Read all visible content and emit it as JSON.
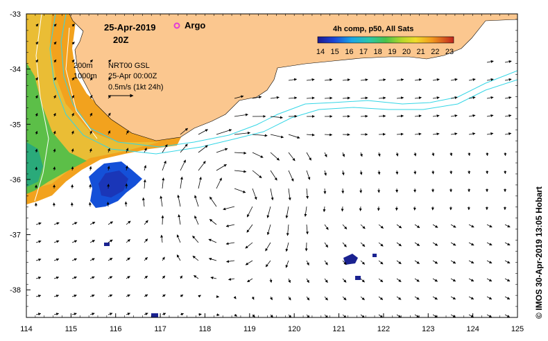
{
  "map": {
    "date": "25-Apr-2019",
    "hour": "20Z",
    "argo_label": "Argo",
    "colorbar_title": "4h comp, p50, All Sats",
    "colorbar_ticks": [
      "14",
      "15",
      "16",
      "17",
      "18",
      "19",
      "20",
      "21",
      "22",
      "23"
    ],
    "contour_labels": [
      "200m",
      "1000m"
    ],
    "info_lines": [
      "NRT00 GSL",
      "25-Apr 00:00Z",
      "0.5m/s (1kt 24h)"
    ],
    "credit": "© IMOS 30-Apr-2019 13:05 Hobart",
    "x_ticks": [
      "114",
      "115",
      "116",
      "117",
      "118",
      "119",
      "120",
      "121",
      "122",
      "123",
      "124",
      "125"
    ],
    "y_ticks": [
      "-33",
      "-34",
      "-35",
      "-36",
      "-37",
      "-38"
    ],
    "colors": {
      "land": "#fbc78f",
      "isobath": "#33d6e6",
      "argo": "#e23ad8",
      "sst_warm": "#f2a21e",
      "sst_cool": "#1450d8"
    }
  },
  "chart_data": {
    "type": "map",
    "x_label": "",
    "y_label": "",
    "xlim": [
      114,
      125
    ],
    "ylim": [
      -38.5,
      -33
    ],
    "colorbar_range": [
      14,
      23
    ],
    "colorbar_units": "",
    "sst_patches": [
      {
        "name": "",
        "lon": 114.5,
        "lat": -34.2,
        "value": 21
      },
      {
        "name": "",
        "lon": 115.9,
        "lat": -36.1,
        "value": 15
      },
      {
        "name": "",
        "lon": 121.2,
        "lat": -37.5,
        "value": 14
      }
    ],
    "eddy_center": {
      "lon": 118.6,
      "lat": -36.3
    }
  }
}
